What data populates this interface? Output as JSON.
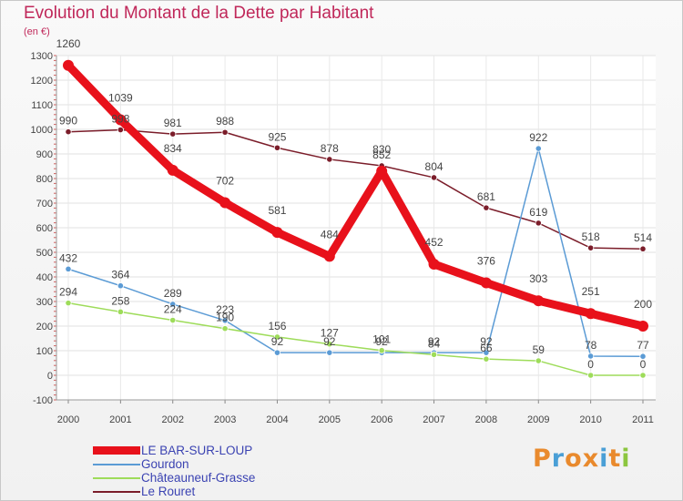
{
  "header": {
    "title": "Evolution du Montant de la Dette par Habitant",
    "unit": "(en €)"
  },
  "logo": {
    "text": "Proxiti",
    "letters": [
      "P",
      "r",
      "o",
      "x",
      "i",
      "t",
      "i"
    ],
    "colors": [
      "#e98a2d",
      "#4a9fd6",
      "#e98a2d",
      "#e98a2d",
      "#4a9fd6",
      "#e98a2d",
      "#8cc63f"
    ]
  },
  "chart_data": {
    "type": "line",
    "title": "Evolution du Montant de la Dette par Habitant",
    "ylabel": "(en €)",
    "xlabel": "",
    "x": [
      "2000",
      "2001",
      "2002",
      "2003",
      "2004",
      "2005",
      "2006",
      "2007",
      "2008",
      "2009",
      "2010",
      "2011"
    ],
    "ylim": [
      -100,
      1300
    ],
    "yticks": [
      -100,
      0,
      100,
      200,
      300,
      400,
      500,
      600,
      700,
      800,
      900,
      1000,
      1100,
      1200,
      1300
    ],
    "grid": true,
    "legend_placement": "bottom-left",
    "series": [
      {
        "name": "LE BAR-SUR-LOUP",
        "color": "#e8111b",
        "values": [
          1260,
          1039,
          834,
          702,
          581,
          484,
          830,
          452,
          376,
          303,
          251,
          200
        ]
      },
      {
        "name": "Gourdon",
        "color": "#5b9bd5",
        "values": [
          432,
          364,
          289,
          223,
          92,
          92,
          92,
          92,
          92,
          922,
          78,
          77
        ]
      },
      {
        "name": "Châteauneuf-Grasse",
        "color": "#9edc5a",
        "values": [
          294,
          258,
          224,
          190,
          156,
          127,
          101,
          84,
          66,
          59,
          0,
          0
        ]
      },
      {
        "name": "Le Rouret",
        "color": "#7b1d2a",
        "values": [
          990,
          998,
          981,
          988,
          925,
          878,
          852,
          804,
          681,
          619,
          518,
          514
        ]
      }
    ]
  }
}
